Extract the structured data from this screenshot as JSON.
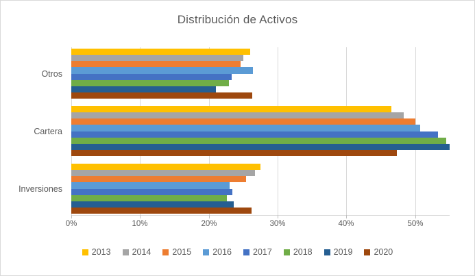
{
  "chart_data": {
    "type": "bar",
    "orientation": "horizontal",
    "title": "Distribución de Activos",
    "categories": [
      "Otros",
      "Cartera",
      "Inversiones"
    ],
    "series": [
      {
        "name": "2013",
        "color": "#FFC000",
        "values": [
          26.0,
          46.5,
          27.5
        ]
      },
      {
        "name": "2014",
        "color": "#A5A5A5",
        "values": [
          25.0,
          48.3,
          26.7
        ]
      },
      {
        "name": "2015",
        "color": "#ED7D31",
        "values": [
          24.6,
          50.0,
          25.4
        ]
      },
      {
        "name": "2016",
        "color": "#5B9BD5",
        "values": [
          26.4,
          50.7,
          23.0
        ]
      },
      {
        "name": "2017",
        "color": "#4472C4",
        "values": [
          23.3,
          53.3,
          23.4
        ]
      },
      {
        "name": "2018",
        "color": "#70AD47",
        "values": [
          22.9,
          54.5,
          22.6
        ]
      },
      {
        "name": "2019",
        "color": "#255E91",
        "values": [
          21.0,
          55.0,
          23.6
        ]
      },
      {
        "name": "2020",
        "color": "#9E480E",
        "values": [
          26.3,
          47.3,
          26.2
        ]
      }
    ],
    "x_ticks": {
      "labels": [
        "0%",
        "10%",
        "20%",
        "30%",
        "40%",
        "50%"
      ],
      "values": [
        0,
        10,
        20,
        30,
        40,
        50
      ]
    },
    "xlim": [
      0,
      55
    ],
    "grid": true,
    "legend_position": "bottom",
    "series_order_in_cluster": "top-to-bottom",
    "colors": {
      "gridline": "#d9d9d9",
      "axis_text": "#595959",
      "title_text": "#595959",
      "border": "#d9d9d9"
    }
  }
}
